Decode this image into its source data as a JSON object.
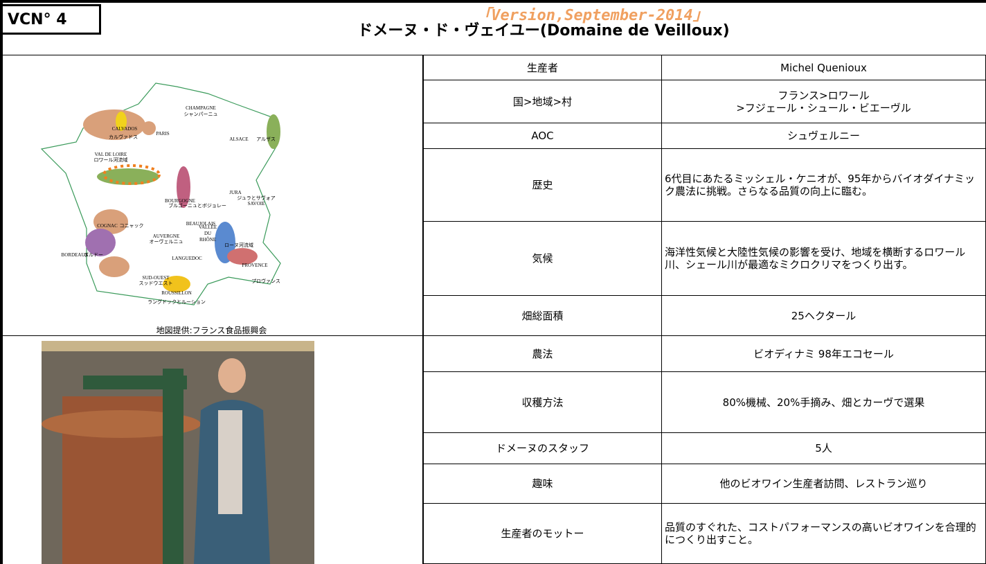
{
  "header": {
    "id": "VCN° 4",
    "version": "「Version,September-2014」",
    "title": "ドメーヌ・ド・ヴェイユー(Domaine de Veilloux)"
  },
  "map": {
    "labels": [
      "CHAMPAGNE",
      "シャンパーニュ",
      "ALSACE",
      "アルザス",
      "CALVADOS",
      "カルヴァドス",
      "PARIS",
      "VAL DE LOIRE",
      "ロワール河流域",
      "BOURGOGNE",
      "ブルゴーニュとボジョレー",
      "JURA",
      "ジュラとサヴォア",
      "SAVOIE",
      "BEAUJOLAIS",
      "COGNAC",
      "コニャック",
      "AUVERGNE",
      "オーヴェルニュ",
      "VALLÉE",
      "DU",
      "RHÔNE",
      "ローヌ河流域",
      "BORDEAUX",
      "ボルドー",
      "LANGUEDOC",
      "PROVENCE",
      "プロヴァンス",
      "SUD-OUEST",
      "スッドウエスト",
      "ROUSSILLON",
      "ラングドックとルーション"
    ],
    "credit": "地図提供:フランス食品振興会"
  },
  "table": {
    "rows": [
      [
        "生産者",
        "Michel Quenioux"
      ],
      [
        "国>地域>村",
        "フランス>ロワール\n>フジェール・シュール・ビエーヴル"
      ],
      [
        "AOC",
        "シュヴェルニー"
      ],
      [
        "歴史",
        "6代目にあたるミッシェル・ケニオが、95年からバイオダイナミック農法に挑戦。さらなる品質の向上に臨む。"
      ],
      [
        "気候",
        "海洋性気候と大陸性気候の影響を受け、地域を横断するロワール川、シェール川が最適なミクロクリマをつくり出す。"
      ],
      [
        "畑総面積",
        "25ヘクタール"
      ],
      [
        "農法",
        "ビオディナミ  98年エコセール"
      ],
      [
        "収穫方法",
        "80%機械、20%手摘み、畑とカーヴで選果"
      ],
      [
        "ドメーヌのスタッフ",
        "5人"
      ],
      [
        "趣味",
        "他のビオワイン生産者訪問、レストラン巡り"
      ],
      [
        "生産者のモットー",
        "品質のすぐれた、コストパフォーマンスの高いビオワインを合理的につくり出すこと。"
      ]
    ]
  }
}
